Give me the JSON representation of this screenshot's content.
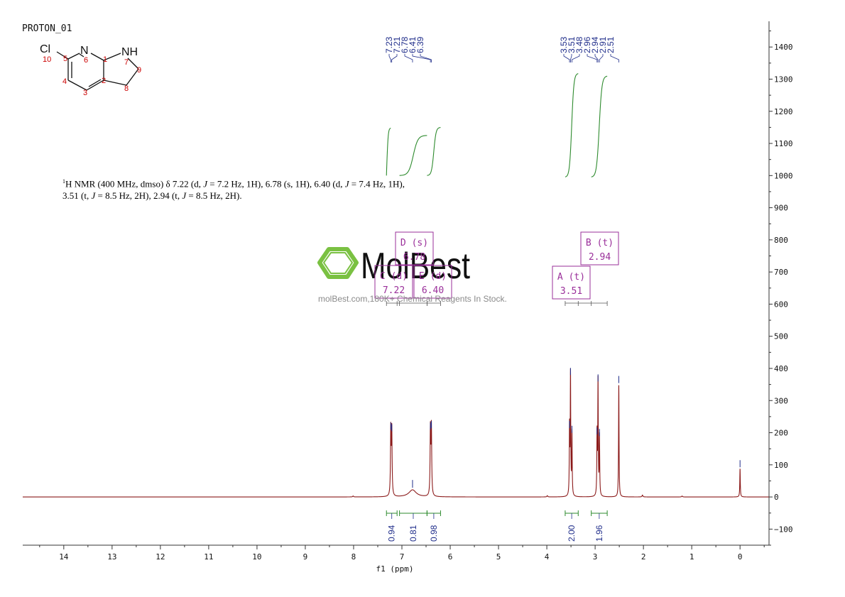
{
  "title": "PROTON_01",
  "description": {
    "line1_prefix": "H NMR (400 MHz, dmso) δ 7.22 (d, ",
    "j1": "J",
    "line1_mid1": " = 7.2 Hz, 1H), 6.78 (s, 1H), 6.40 (d, ",
    "j2": "J",
    "line1_end": " = 7.4 Hz, 1H),",
    "line2_prefix": "3.51 (t, ",
    "j3": "J",
    "line2_mid": " = 8.5 Hz, 2H), 2.94 (t, ",
    "j4": "J",
    "line2_end": " = 8.5 Hz, 2H).",
    "superscript": "1"
  },
  "structure": {
    "atoms": [
      "Cl",
      "N",
      "NH"
    ],
    "numbers": [
      "10",
      "5",
      "6",
      "1",
      "7",
      "9",
      "4",
      "2",
      "8",
      "3"
    ]
  },
  "watermark": {
    "brand": "MolBest",
    "url": "molBest.com,180K+ Chemical Reagents In Stock."
  },
  "colors": {
    "spectrum": "#8b1a1a",
    "integral": "#2e8b2e",
    "peak_label": "#1f2d8a",
    "multiplet_box": "#9a2f9a",
    "numbering": "#cc0000",
    "logo": "#7ac142"
  },
  "chart_data": {
    "type": "line",
    "xlabel": "f1 (ppm)",
    "xlim": [
      14.85,
      -0.6
    ],
    "ylim": [
      -150,
      1480
    ],
    "x_ticks": [
      "14",
      "13",
      "12",
      "11",
      "10",
      "9",
      "8",
      "7",
      "6",
      "5",
      "4",
      "3",
      "2",
      "1",
      "0"
    ],
    "y_ticks": [
      "1400",
      "1300",
      "1200",
      "1100",
      "1000",
      "900",
      "800",
      "700",
      "600",
      "500",
      "400",
      "300",
      "200",
      "100",
      "0",
      "-100"
    ],
    "peaks": [
      {
        "ppm": 7.23,
        "height": 205,
        "width": 0.008
      },
      {
        "ppm": 7.21,
        "height": 200,
        "width": 0.008
      },
      {
        "ppm": 6.78,
        "height": 22,
        "width": 0.09
      },
      {
        "ppm": 6.41,
        "height": 205,
        "width": 0.008
      },
      {
        "ppm": 6.39,
        "height": 210,
        "width": 0.008
      },
      {
        "ppm": 3.53,
        "height": 210,
        "width": 0.006
      },
      {
        "ppm": 3.51,
        "height": 375,
        "width": 0.006
      },
      {
        "ppm": 3.48,
        "height": 195,
        "width": 0.006
      },
      {
        "ppm": 2.96,
        "height": 190,
        "width": 0.006
      },
      {
        "ppm": 2.94,
        "height": 355,
        "width": 0.006
      },
      {
        "ppm": 2.91,
        "height": 185,
        "width": 0.006
      },
      {
        "ppm": 2.51,
        "height": 350,
        "width": 0.006
      },
      {
        "ppm": 0.0,
        "height": 88,
        "width": 0.006
      },
      {
        "ppm": 8.01,
        "height": 3,
        "width": 0.01
      },
      {
        "ppm": 3.99,
        "height": 4,
        "width": 0.01
      },
      {
        "ppm": 2.02,
        "height": 6,
        "width": 0.01
      },
      {
        "ppm": 1.2,
        "height": 3,
        "width": 0.01
      }
    ],
    "peak_labels": [
      "7.23",
      "7.21",
      "6.78",
      "6.41",
      "6.39",
      "3.53",
      "3.51",
      "3.48",
      "2.96",
      "2.94",
      "2.91",
      "2.51"
    ],
    "peak_label_groups": [
      {
        "labels": [
          "7.23",
          "7.21",
          "6.78",
          "6.41",
          "6.39"
        ],
        "ppm": [
          7.23,
          7.21,
          6.78,
          6.41,
          6.39
        ]
      },
      {
        "labels": [
          "3.53",
          "3.51",
          "3.48",
          "2.96",
          "2.94",
          "2.91",
          "2.51"
        ],
        "ppm": [
          3.53,
          3.51,
          3.48,
          2.96,
          2.94,
          2.91,
          2.51
        ]
      }
    ],
    "integrals": [
      {
        "from": 7.32,
        "to": 7.1,
        "value": "0.94",
        "y_start": 1145,
        "y_end": 1145
      },
      {
        "from": 7.05,
        "to": 6.48,
        "value": "0.81",
        "y_start": 1000,
        "y_end": 1125
      },
      {
        "from": 6.48,
        "to": 6.2,
        "value": "0.98",
        "y_start": 1000,
        "y_end": 1150
      },
      {
        "from": 3.62,
        "to": 3.35,
        "value": "2.00",
        "y_start": 995,
        "y_end": 1318
      },
      {
        "from": 3.08,
        "to": 2.75,
        "value": "1.96",
        "y_start": 995,
        "y_end": 1310
      }
    ],
    "multiplets": [
      {
        "label": "D (s)",
        "shift": "6.78"
      },
      {
        "label": "C (d)",
        "shift": "7.22"
      },
      {
        "label": "E (d)",
        "shift": "6.40"
      },
      {
        "label": "A (t)",
        "shift": "3.51"
      },
      {
        "label": "B (t)",
        "shift": "2.94"
      }
    ]
  }
}
